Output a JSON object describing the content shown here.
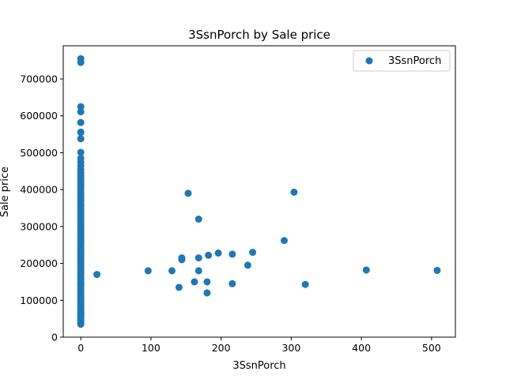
{
  "chart_data": {
    "type": "scatter",
    "title": "3SsnPorch by Sale price",
    "xlabel": "3SsnPorch",
    "ylabel": "Sale price",
    "xlim": [
      -25,
      534
    ],
    "ylim": [
      0,
      790000
    ],
    "x_ticks": [
      0,
      100,
      200,
      300,
      400,
      500
    ],
    "x_tick_labels": [
      "0",
      "100",
      "200",
      "300",
      "400",
      "500"
    ],
    "y_ticks": [
      0,
      100000,
      200000,
      300000,
      400000,
      500000,
      600000,
      700000
    ],
    "y_tick_labels": [
      "0",
      "100000",
      "200000",
      "300000",
      "400000",
      "500000",
      "600000",
      "700000"
    ],
    "grid": false,
    "legend": {
      "position": "top-right",
      "entries": [
        "3SsnPorch"
      ]
    },
    "colors": {
      "series": "#1f77b4"
    },
    "series": [
      {
        "name": "3SsnPorch",
        "x": [
          0,
          0,
          0,
          0,
          0,
          0,
          0,
          0,
          0,
          0,
          0,
          0,
          0,
          0,
          0,
          0,
          0,
          0,
          0,
          0,
          0,
          0,
          0,
          0,
          0,
          0,
          0,
          0,
          0,
          0,
          0,
          0,
          0,
          0,
          0,
          0,
          0,
          0,
          0,
          0,
          0,
          0,
          0,
          0,
          0,
          0,
          0,
          0,
          0,
          0,
          0,
          0,
          0,
          0,
          0,
          0,
          0,
          0,
          0,
          0,
          0,
          0,
          0,
          0,
          0,
          0,
          0,
          0,
          0,
          0,
          0,
          0,
          0,
          0,
          0,
          0,
          0,
          0,
          0,
          0,
          0,
          0,
          0,
          0,
          0,
          23,
          96,
          130,
          140,
          144,
          144,
          153,
          162,
          168,
          168,
          168,
          180,
          180,
          182,
          196,
          216,
          216,
          238,
          245,
          290,
          304,
          320,
          407,
          508
        ],
        "y": [
          755000,
          745000,
          625000,
          611000,
          582000,
          556000,
          555000,
          538000,
          501000,
          485000,
          475000,
          465000,
          455000,
          446000,
          438000,
          430000,
          423000,
          415000,
          408000,
          400000,
          392000,
          385000,
          377000,
          370000,
          362000,
          355000,
          347000,
          340000,
          332000,
          325000,
          318000,
          310000,
          303000,
          296000,
          289000,
          282000,
          275000,
          268000,
          261000,
          255000,
          248000,
          241000,
          235000,
          228000,
          221000,
          215000,
          208000,
          201000,
          195000,
          188000,
          182000,
          175000,
          169000,
          162000,
          156000,
          150000,
          144000,
          138000,
          132000,
          126000,
          120000,
          114000,
          108000,
          102000,
          97000,
          91000,
          86000,
          81000,
          76000,
          71000,
          67000,
          62000,
          58000,
          54000,
          50000,
          46000,
          43000,
          40000,
          37000,
          35000,
          228000,
          142000,
          89000,
          64000,
          59000,
          170000,
          180000,
          180000,
          135000,
          215000,
          210000,
          390000,
          150000,
          180000,
          320000,
          215000,
          150000,
          120000,
          222000,
          228000,
          145000,
          225000,
          195000,
          230000,
          262000,
          393000,
          143000,
          182000,
          181000
        ]
      }
    ]
  }
}
